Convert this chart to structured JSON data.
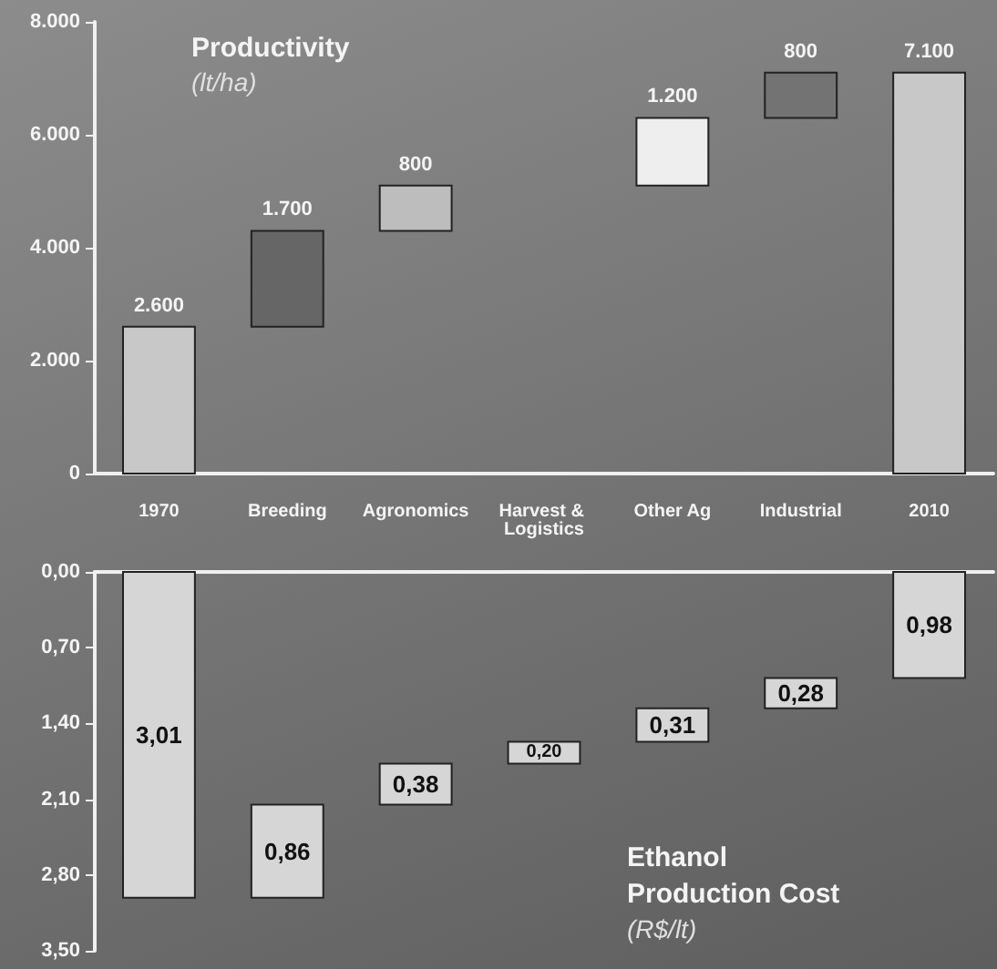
{
  "chart_data": [
    {
      "type": "bar",
      "title": "Productivity",
      "subtitle": "(lt/ha)",
      "categories": [
        "1970",
        "Breeding",
        "Agronomics",
        "Harvest & Logistics",
        "Other Ag",
        "Industrial",
        "2010"
      ],
      "values": [
        2600,
        1700,
        800,
        null,
        1200,
        800,
        7100
      ],
      "base": [
        0,
        2600,
        4300,
        null,
        5100,
        6300,
        0
      ],
      "colors": [
        "#c8c8c8",
        "#666666",
        "#bdbdbd",
        null,
        "#eeeeee",
        "#737373",
        "#c8c8c8"
      ],
      "value_labels": [
        "2.600",
        "1.700",
        "800",
        null,
        "1.200",
        "800",
        "7.100"
      ],
      "ylim": [
        0,
        8000
      ],
      "yticks": [
        {
          "value": 0,
          "label": "0"
        },
        {
          "value": 2000,
          "label": "2.000"
        },
        {
          "value": 4000,
          "label": "4.000"
        },
        {
          "value": 6000,
          "label": "6.000"
        },
        {
          "value": 8000,
          "label": "8.000"
        }
      ],
      "grid": false
    },
    {
      "type": "bar",
      "title": "Ethanol Production Cost",
      "subtitle": "(R$/lt)",
      "categories": [
        "1970",
        "Breeding",
        "Agronomics",
        "Harvest & Logistics",
        "Other Ag",
        "Industrial",
        "2010"
      ],
      "values": [
        3.01,
        0.86,
        0.38,
        0.2,
        0.31,
        0.28,
        0.98
      ],
      "base": [
        0,
        2.15,
        1.77,
        1.57,
        1.26,
        0.98,
        0
      ],
      "colors": [
        "#d6d6d6",
        "#d6d6d6",
        "#d6d6d6",
        "#d6d6d6",
        "#d6d6d6",
        "#d6d6d6",
        "#d6d6d6"
      ],
      "value_labels": [
        "3,01",
        "0,86",
        "0,38",
        "0,20",
        "0,31",
        "0,28",
        "0,98"
      ],
      "ylim": [
        3.5,
        0
      ],
      "yticks": [
        {
          "value": 0,
          "label": "0,00"
        },
        {
          "value": 0.7,
          "label": "0,70"
        },
        {
          "value": 1.4,
          "label": "1,40"
        },
        {
          "value": 2.1,
          "label": "2,10"
        },
        {
          "value": 2.8,
          "label": "2,80"
        },
        {
          "value": 3.5,
          "label": "3,50"
        }
      ],
      "tick_labels": "y",
      "grid": false
    }
  ]
}
